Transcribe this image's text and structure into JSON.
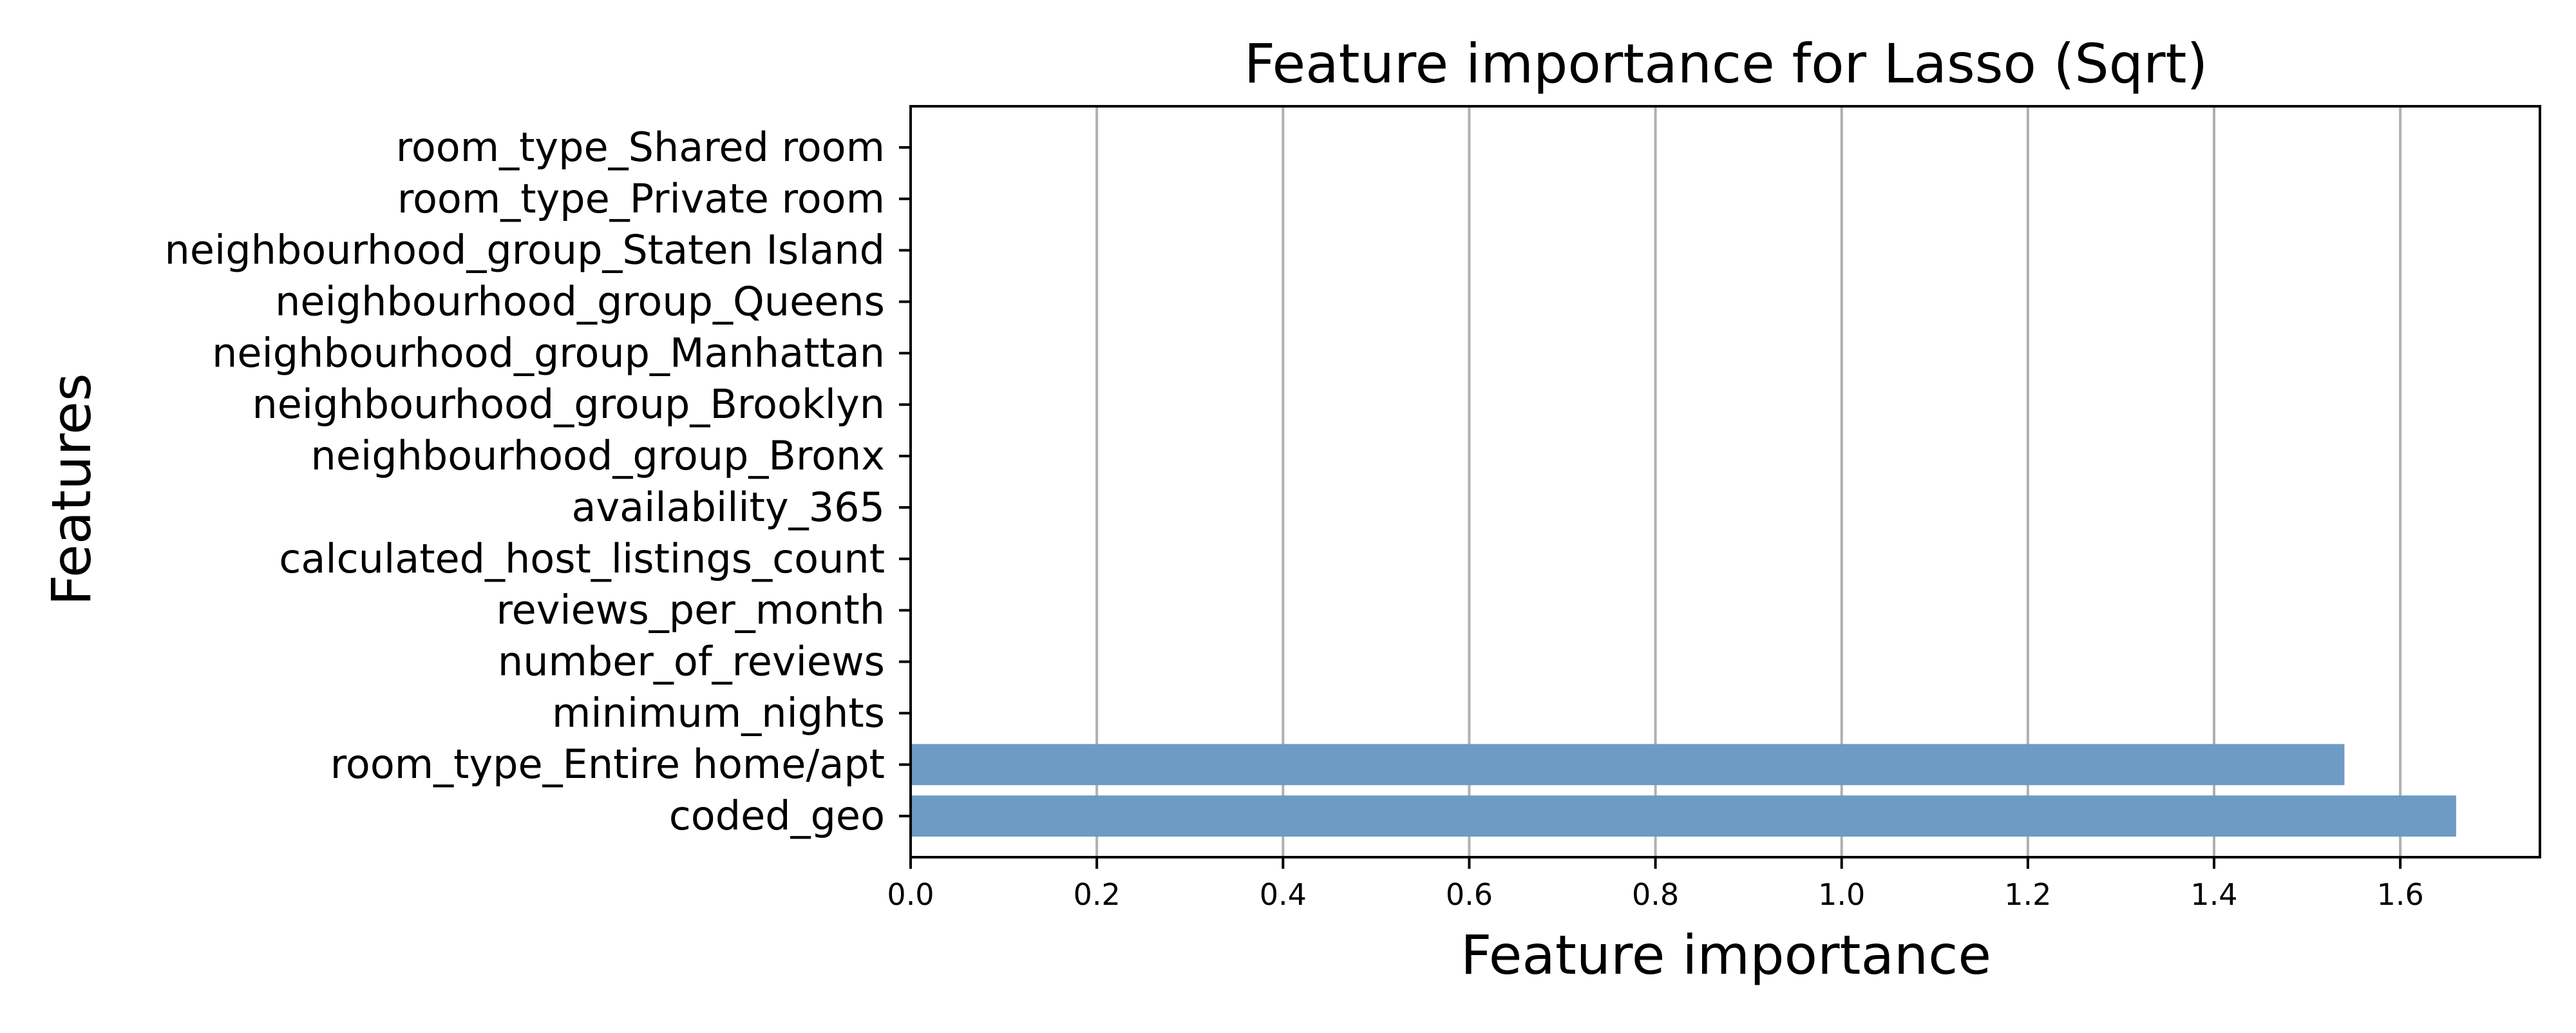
{
  "chart_data": {
    "type": "bar",
    "orientation": "horizontal",
    "title": "Feature importance for Lasso (Sqrt)",
    "xlabel": "Feature importance",
    "ylabel": "Features",
    "xlim": [
      0,
      1.75
    ],
    "xticks": [
      "0.0",
      "0.2",
      "0.4",
      "0.6",
      "0.8",
      "1.0",
      "1.2",
      "1.4",
      "1.6"
    ],
    "grid": "vertical",
    "bar_color": "#6d9bc3",
    "categories": [
      "room_type_Shared room",
      "room_type_Private room",
      "neighbourhood_group_Staten Island",
      "neighbourhood_group_Queens",
      "neighbourhood_group_Manhattan",
      "neighbourhood_group_Brooklyn",
      "neighbourhood_group_Bronx",
      "availability_365",
      "calculated_host_listings_count",
      "reviews_per_month",
      "number_of_reviews",
      "minimum_nights",
      "room_type_Entire home/apt",
      "coded_geo"
    ],
    "values": [
      0,
      0,
      0,
      0,
      0,
      0,
      0,
      0,
      0,
      0,
      0,
      0,
      1.54,
      1.66
    ]
  }
}
